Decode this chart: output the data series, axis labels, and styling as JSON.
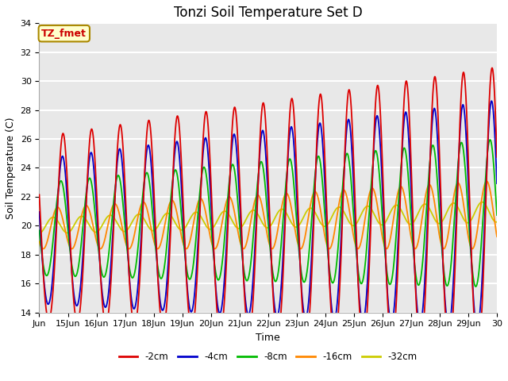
{
  "title": "Tonzi Soil Temperature Set D",
  "xlabel": "Time",
  "ylabel": "Soil Temperature (C)",
  "ylim": [
    14,
    34
  ],
  "xlim": [
    0,
    16
  ],
  "x_tick_labels": [
    "Jun",
    "15Jun",
    "16Jun",
    "17Jun",
    "18Jun",
    "19Jun",
    "20Jun",
    "21Jun",
    "22Jun",
    "23Jun",
    "24Jun",
    "25Jun",
    "26Jun",
    "27Jun",
    "28Jun",
    "29Jun",
    "30"
  ],
  "x_tick_positions": [
    0,
    1,
    2,
    3,
    4,
    5,
    6,
    7,
    8,
    9,
    10,
    11,
    12,
    13,
    14,
    15,
    16
  ],
  "colors": {
    "-2cm": "#dd0000",
    "-4cm": "#0000cc",
    "-8cm": "#00bb00",
    "-16cm": "#ff8800",
    "-32cm": "#cccc00"
  },
  "legend_labels": [
    "-2cm",
    "-4cm",
    "-8cm",
    "-16cm",
    "-32cm"
  ],
  "annotation_text": "TZ_fmet",
  "annotation_color": "#cc0000",
  "annotation_bg": "#ffffcc",
  "annotation_border": "#aa8800",
  "bg_color": "#e8e8e8",
  "grid_color": "white",
  "title_fontsize": 12,
  "label_fontsize": 9,
  "tick_fontsize": 8
}
